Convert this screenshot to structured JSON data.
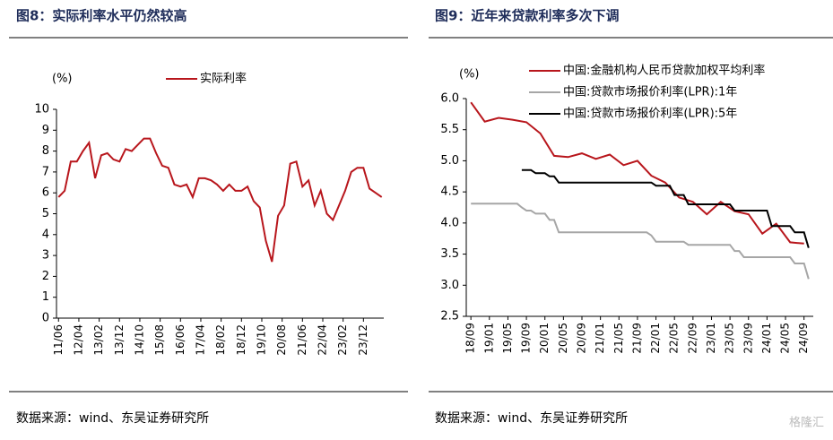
{
  "chart_data": [
    {
      "type": "line",
      "title": "图8：实际利率水平仍然较高",
      "source": "数据来源：wind、东吴证券研究所",
      "ylabel": "(%)",
      "xlim": [
        "11/05",
        "24/10"
      ],
      "xticks": [
        "11/06",
        "12/04",
        "13/02",
        "13/12",
        "14/10",
        "15/08",
        "16/06",
        "17/04",
        "18/02",
        "18/12",
        "19/10",
        "20/08",
        "21/06",
        "22/04",
        "23/02",
        "23/12"
      ],
      "ylim": [
        0,
        10
      ],
      "yticks": [
        0,
        1,
        2,
        3,
        4,
        5,
        6,
        7,
        8,
        9,
        10
      ],
      "series": [
        {
          "name": "实际利率",
          "color": "#b8161c",
          "x": [
            "11/06",
            "11/09",
            "11/12",
            "12/03",
            "12/06",
            "12/09",
            "12/12",
            "13/03",
            "13/06",
            "13/09",
            "13/12",
            "14/03",
            "14/06",
            "14/09",
            "14/12",
            "15/03",
            "15/06",
            "15/09",
            "15/12",
            "16/03",
            "16/06",
            "16/09",
            "16/12",
            "17/03",
            "17/06",
            "17/09",
            "17/12",
            "18/03",
            "18/06",
            "18/09",
            "18/12",
            "19/03",
            "19/06",
            "19/09",
            "19/12",
            "20/03",
            "20/06",
            "20/09",
            "20/12",
            "21/03",
            "21/06",
            "21/09",
            "21/12",
            "22/03",
            "22/06",
            "22/09",
            "22/12",
            "23/03",
            "23/06",
            "23/09",
            "23/12",
            "24/03",
            "24/06",
            "24/09"
          ],
          "values": [
            5.8,
            6.1,
            7.5,
            7.5,
            8.0,
            8.4,
            6.7,
            7.8,
            7.9,
            7.6,
            7.5,
            8.1,
            8.0,
            8.3,
            8.6,
            8.6,
            7.9,
            7.3,
            7.2,
            6.4,
            6.3,
            6.4,
            5.8,
            6.7,
            6.7,
            6.6,
            6.4,
            6.1,
            6.4,
            6.1,
            6.1,
            6.3,
            5.6,
            5.3,
            3.7,
            2.7,
            4.9,
            5.4,
            7.4,
            7.5,
            6.3,
            6.6,
            5.4,
            6.1,
            5.0,
            4.7,
            5.4,
            6.1,
            7.0,
            7.2,
            7.2,
            6.2,
            6.0,
            5.8
          ]
        }
      ]
    },
    {
      "type": "line",
      "title": "图9：近年来贷款利率多次下调",
      "source": "数据来源：wind、东吴证券研究所",
      "ylabel": "(%)",
      "xlim": [
        "18/08",
        "24/11"
      ],
      "xticks": [
        "18/09",
        "19/01",
        "19/05",
        "19/09",
        "20/01",
        "20/05",
        "20/09",
        "21/01",
        "21/05",
        "21/09",
        "22/01",
        "22/05",
        "22/09",
        "23/01",
        "23/05",
        "23/09",
        "24/01",
        "24/05",
        "24/09"
      ],
      "ylim": [
        2.5,
        6.0
      ],
      "yticks": [
        {
          "value": 2.5,
          "label": "2.5"
        },
        {
          "value": 3.0,
          "label": "3.0"
        },
        {
          "value": 3.5,
          "label": "3.5"
        },
        {
          "value": 4.0,
          "label": "4.0"
        },
        {
          "value": 4.5,
          "label": "4.5"
        },
        {
          "value": 5.0,
          "label": "5.0"
        },
        {
          "value": 5.5,
          "label": "5.5"
        },
        {
          "value": 6.0,
          "label": "6.0"
        }
      ],
      "series": [
        {
          "name": "中国:金融机构人民币贷款加权平均利率",
          "color": "#b8161c",
          "x": [
            "18/09",
            "18/12",
            "19/03",
            "19/06",
            "19/09",
            "19/12",
            "20/03",
            "20/06",
            "20/09",
            "20/12",
            "21/03",
            "21/06",
            "21/09",
            "21/12",
            "22/03",
            "22/06",
            "22/09",
            "22/12",
            "23/03",
            "23/06",
            "23/09",
            "23/12",
            "24/03",
            "24/06",
            "24/09"
          ],
          "values": [
            5.94,
            5.63,
            5.69,
            5.66,
            5.62,
            5.44,
            5.08,
            5.06,
            5.12,
            5.03,
            5.1,
            4.93,
            5.0,
            4.76,
            4.65,
            4.41,
            4.34,
            4.14,
            4.34,
            4.19,
            4.14,
            3.83,
            3.99,
            3.69,
            3.67
          ]
        },
        {
          "name": "中国:贷款市场报价利率(LPR):1年",
          "color": "#a6a6a6",
          "x": [
            "18/09",
            "19/07",
            "19/08",
            "19/09",
            "19/10",
            "19/11",
            "20/01",
            "20/02",
            "20/03",
            "20/04",
            "21/11",
            "21/12",
            "22/01",
            "22/07",
            "22/08",
            "23/05",
            "23/06",
            "23/07",
            "23/08",
            "24/06",
            "24/07",
            "24/09",
            "24/10"
          ],
          "values": [
            4.31,
            4.31,
            4.25,
            4.2,
            4.2,
            4.15,
            4.15,
            4.05,
            4.05,
            3.85,
            3.85,
            3.8,
            3.7,
            3.7,
            3.65,
            3.65,
            3.55,
            3.55,
            3.45,
            3.45,
            3.35,
            3.35,
            3.1
          ]
        },
        {
          "name": "中国:贷款市场报价利率(LPR):5年",
          "color": "#000000",
          "x": [
            "19/08",
            "19/10",
            "19/11",
            "20/01",
            "20/02",
            "20/03",
            "20/04",
            "21/12",
            "22/01",
            "22/04",
            "22/05",
            "22/07",
            "22/08",
            "23/05",
            "23/06",
            "24/01",
            "24/02",
            "24/06",
            "24/07",
            "24/09",
            "24/10"
          ],
          "values": [
            4.85,
            4.85,
            4.8,
            4.8,
            4.75,
            4.75,
            4.65,
            4.65,
            4.6,
            4.6,
            4.45,
            4.45,
            4.3,
            4.3,
            4.2,
            4.2,
            3.95,
            3.95,
            3.85,
            3.85,
            3.6
          ]
        }
      ]
    }
  ],
  "watermark": "格隆汇"
}
